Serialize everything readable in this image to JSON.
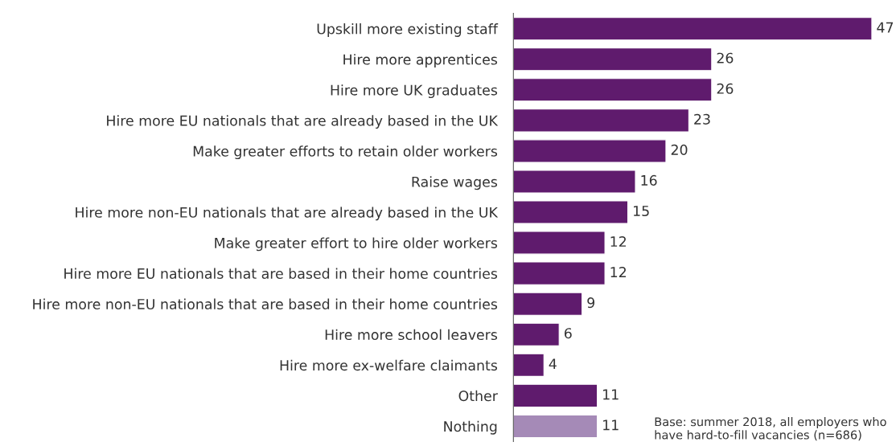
{
  "chart_data": {
    "type": "bar",
    "orientation": "horizontal",
    "categories": [
      "Upskill more existing staff",
      "Hire more apprentices",
      "Hire more UK graduates",
      "Hire more EU nationals that are already based in the UK",
      "Make greater efforts to retain older workers",
      "Raise wages",
      "Hire more non-EU nationals that are already based in the UK",
      "Make greater effort to hire older workers",
      "Hire more EU nationals that are based in their home countries",
      "Hire more non-EU nationals that are based in their home countries",
      "Hire more school leavers",
      "Hire more ex-welfare claimants",
      "Other",
      "Nothing"
    ],
    "values": [
      47,
      26,
      26,
      23,
      20,
      16,
      15,
      12,
      12,
      9,
      6,
      4,
      11,
      11
    ],
    "colors": [
      "#5f1b6d",
      "#5f1b6d",
      "#5f1b6d",
      "#5f1b6d",
      "#5f1b6d",
      "#5f1b6d",
      "#5f1b6d",
      "#5f1b6d",
      "#5f1b6d",
      "#5f1b6d",
      "#5f1b6d",
      "#5f1b6d",
      "#5f1b6d",
      "#a58ab7"
    ],
    "data_labels": true,
    "annotations": [
      "Base: summer 2018, all employers who have hard-to-fill vacancies (n=686)"
    ]
  }
}
